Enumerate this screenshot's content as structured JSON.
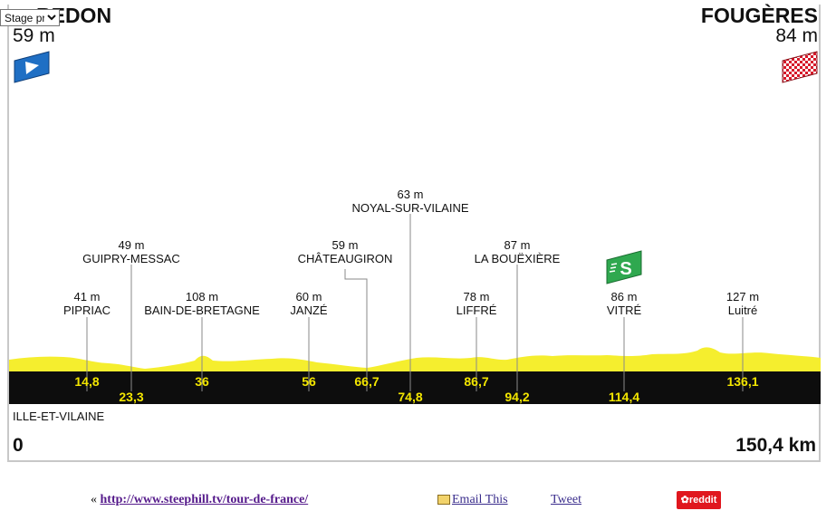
{
  "view_select": {
    "selected": "Stage profile"
  },
  "start": {
    "name": "REDON",
    "altitude": "59 m"
  },
  "finish": {
    "name": "FOUGÈRES",
    "altitude": "84 m"
  },
  "points": [
    {
      "name": "PIPRIAC",
      "alt": "41 m",
      "km": "14,8"
    },
    {
      "name": "GUIPRY-MESSAC",
      "alt": "49 m",
      "km": "23,3"
    },
    {
      "name": "BAIN-DE-BRETAGNE",
      "alt": "108 m",
      "km": "36"
    },
    {
      "name": "JANZÉ",
      "alt": "60 m",
      "km": "56"
    },
    {
      "name": "CHÂTEAUGIRON",
      "alt": "59 m",
      "km": "66,7"
    },
    {
      "name": "NOYAL-SUR-VILAINE",
      "alt": "63 m",
      "km": "74,8"
    },
    {
      "name": "LIFFRÉ",
      "alt": "78 m",
      "km": "86,7"
    },
    {
      "name": "LA BOUËXIÈRE",
      "alt": "87 m",
      "km": "94,2"
    },
    {
      "name": "VITRÉ",
      "alt": "86 m",
      "km": "114,4"
    },
    {
      "name": "Luitré",
      "alt": "127 m",
      "km": "136,1"
    }
  ],
  "sprint": {
    "label": "S",
    "color": "#2fa84f"
  },
  "department": "ILLE-ET-VILAINE",
  "distance_start": "0",
  "distance_total": "150,4 km",
  "colors": {
    "profile": "#f5ee2e",
    "band": "#0d0d0d",
    "km_text": "#f3e600",
    "start_flag": "#1f6fc4",
    "finish_flag": "#d7192a"
  },
  "footer": {
    "prefix": "«",
    "link_text": "http://www.steephill.tv/tour-de-france/",
    "email_text": "Email This",
    "tweet_text": "Tweet",
    "reddit_text": "reddit"
  }
}
